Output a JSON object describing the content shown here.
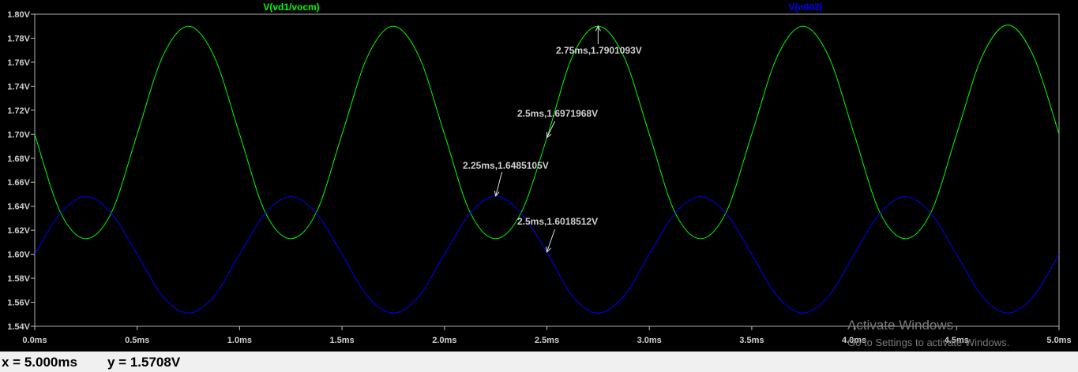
{
  "chart_data": {
    "type": "line",
    "xlim": [
      0,
      5
    ],
    "ylim": [
      1.54,
      1.8
    ],
    "xticks": [
      "0.0ms",
      "0.5ms",
      "1.0ms",
      "1.5ms",
      "2.0ms",
      "2.5ms",
      "3.0ms",
      "3.5ms",
      "4.0ms",
      "4.5ms",
      "5.0ms"
    ],
    "yticks": [
      "1.54V",
      "1.56V",
      "1.58V",
      "1.60V",
      "1.62V",
      "1.64V",
      "1.66V",
      "1.68V",
      "1.70V",
      "1.72V",
      "1.74V",
      "1.76V",
      "1.78V",
      "1.80V"
    ],
    "grid": false,
    "legend_position": "top",
    "series": [
      {
        "name": "V(vd1/vocm)",
        "color": "#00ff00",
        "x": [
          0,
          0.125,
          0.25,
          0.375,
          0.5,
          0.625,
          0.75,
          0.875,
          1.0,
          1.125,
          1.25,
          1.375,
          1.5,
          1.625,
          1.75,
          1.875,
          2.0,
          2.125,
          2.25,
          2.375,
          2.5,
          2.625,
          2.75,
          2.875,
          3.0,
          3.125,
          3.25,
          3.375,
          3.5,
          3.625,
          3.75,
          3.875,
          4.0,
          4.125,
          4.25,
          4.375,
          4.5,
          4.625,
          4.75,
          4.875,
          5.0
        ],
        "values": [
          1.7,
          1.635,
          1.613,
          1.635,
          1.7,
          1.765,
          1.79,
          1.765,
          1.7,
          1.635,
          1.613,
          1.635,
          1.7,
          1.765,
          1.79,
          1.765,
          1.7,
          1.635,
          1.613,
          1.635,
          1.697,
          1.765,
          1.79,
          1.765,
          1.7,
          1.635,
          1.613,
          1.635,
          1.7,
          1.765,
          1.79,
          1.765,
          1.7,
          1.635,
          1.613,
          1.635,
          1.7,
          1.765,
          1.791,
          1.765,
          1.7
        ]
      },
      {
        "name": "V(n002)",
        "color": "#0000ff",
        "x": [
          0,
          0.125,
          0.25,
          0.375,
          0.5,
          0.625,
          0.75,
          0.875,
          1.0,
          1.125,
          1.25,
          1.375,
          1.5,
          1.625,
          1.75,
          1.875,
          2.0,
          2.125,
          2.25,
          2.375,
          2.5,
          2.625,
          2.75,
          2.875,
          3.0,
          3.125,
          3.25,
          3.375,
          3.5,
          3.625,
          3.75,
          3.875,
          4.0,
          4.125,
          4.25,
          4.375,
          4.5,
          4.625,
          4.75,
          4.875,
          5.0
        ],
        "values": [
          1.6,
          1.634,
          1.648,
          1.634,
          1.6,
          1.565,
          1.551,
          1.565,
          1.6,
          1.634,
          1.648,
          1.634,
          1.6,
          1.565,
          1.551,
          1.565,
          1.6,
          1.634,
          1.6485,
          1.634,
          1.6019,
          1.565,
          1.551,
          1.565,
          1.6,
          1.634,
          1.648,
          1.634,
          1.6,
          1.565,
          1.551,
          1.565,
          1.6,
          1.634,
          1.648,
          1.634,
          1.6,
          1.565,
          1.551,
          1.565,
          1.6
        ]
      }
    ],
    "annotations": [
      {
        "text": "2.75ms,1.7901093V",
        "x": 2.75,
        "y": 1.7901093
      },
      {
        "text": "2.5ms,1.6971968V",
        "x": 2.5,
        "y": 1.6971968
      },
      {
        "text": "2.25ms,1.6485105V",
        "x": 2.25,
        "y": 1.6485105
      },
      {
        "text": "2.5ms,1.6018512V",
        "x": 2.5,
        "y": 1.6018512
      }
    ]
  },
  "status": {
    "x_readout": "x = 5.000ms",
    "y_readout": "y = 1.5708V"
  },
  "watermark": {
    "title": "Activate Windows",
    "subtitle": "Go to Settings to activate Windows."
  }
}
